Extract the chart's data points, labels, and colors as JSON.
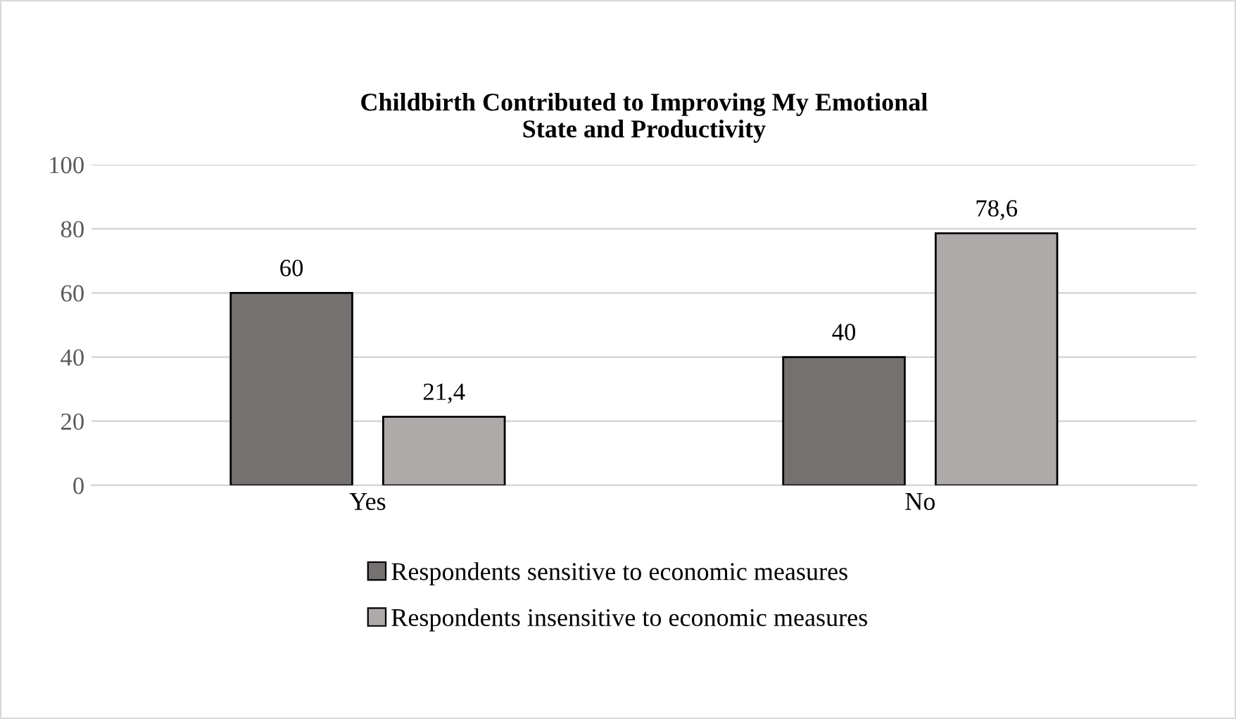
{
  "chart_data": {
    "type": "bar",
    "title": "Childbirth Contributed to Improving My Emotional\nState and Productivity",
    "categories": [
      "Yes",
      "No"
    ],
    "series": [
      {
        "name": "Respondents sensitive to economic measures",
        "color": "#767171",
        "values": [
          60,
          40
        ],
        "value_labels": [
          "60",
          "40"
        ]
      },
      {
        "name": "Respondents insensitive to economic measures",
        "color": "#aeaaaa",
        "values": [
          21.4,
          78.6
        ],
        "value_labels": [
          "21,4",
          "78,6"
        ]
      }
    ],
    "ylim": [
      0,
      100
    ],
    "yticks": [
      0,
      20,
      40,
      60,
      80,
      100
    ],
    "grid": "y",
    "legend": "bottom"
  }
}
